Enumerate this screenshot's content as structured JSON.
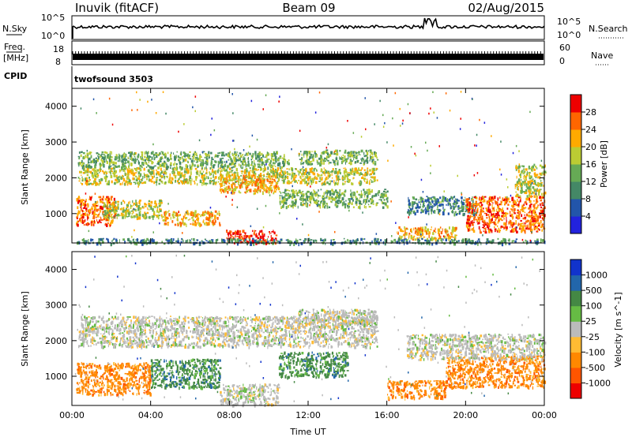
{
  "header": {
    "station": "Inuvik (fitACF)",
    "beam": "Beam 09",
    "date": "02/Aug/2015"
  },
  "strips": {
    "nsky_label": "N.Sky",
    "nsky_ticks": [
      "10^5",
      "10^0"
    ],
    "nsearch_label": "N.Search",
    "nsearch_ticks": [
      "10^5",
      "10^0"
    ],
    "freq_label": "Freq.",
    "freq_unit": "[MHz]",
    "freq_ticks": [
      "18",
      "8"
    ],
    "nave_label": "Nave",
    "nave_ticks": [
      "60",
      "0"
    ],
    "cpid_label": "CPID",
    "cpid_value": "twofsound 3503"
  },
  "colors": {
    "power": [
      "#2222dd",
      "#2255aa",
      "#448866",
      "#66aa55",
      "#bbcc33",
      "#ffaa00",
      "#ff6600",
      "#ee0000"
    ],
    "velocity": [
      "#ee0000",
      "#ff5500",
      "#ff8800",
      "#ffbb33",
      "#bbbbbb",
      "#66bb44",
      "#448844",
      "#2266aa",
      "#1133cc"
    ]
  },
  "chart_data": [
    {
      "type": "heatmap",
      "name": "power",
      "ylabel": "Slant Range [km]",
      "xlabel": "",
      "xlim": [
        "00:00",
        "24:00"
      ],
      "ylim": [
        180,
        4500
      ],
      "x_ticks": [
        "00:00",
        "04:00",
        "08:00",
        "12:00",
        "16:00",
        "20:00",
        "00:00"
      ],
      "y_ticks": [
        1000,
        2000,
        3000,
        4000
      ],
      "colorbar": {
        "label": "Power [dB]",
        "ticks": [
          "4",
          "8",
          "12",
          "16",
          "20",
          "24",
          "28"
        ],
        "range": [
          0,
          32
        ]
      },
      "regions": [
        {
          "t": [
            7.8,
            10.4
          ],
          "r": [
            200,
            550
          ],
          "value": 30
        },
        {
          "t": [
            0.2,
            2.2
          ],
          "r": [
            700,
            1500
          ],
          "value": 26
        },
        {
          "t": [
            1.5,
            4.5
          ],
          "r": [
            900,
            1400
          ],
          "value": 20
        },
        {
          "t": [
            0.3,
            15.5
          ],
          "r": [
            1850,
            2300
          ],
          "value": 19
        },
        {
          "t": [
            0.3,
            11.0
          ],
          "r": [
            2300,
            2750
          ],
          "value": 16
        },
        {
          "t": [
            4.5,
            7.5
          ],
          "r": [
            700,
            1100
          ],
          "value": 22
        },
        {
          "t": [
            7.5,
            10.5
          ],
          "r": [
            1600,
            2100
          ],
          "value": 24
        },
        {
          "t": [
            10.5,
            16.0
          ],
          "r": [
            1200,
            1700
          ],
          "value": 14
        },
        {
          "t": [
            11.5,
            15.5
          ],
          "r": [
            2400,
            2800
          ],
          "value": 16
        },
        {
          "t": [
            17.0,
            20.5
          ],
          "r": [
            1000,
            1500
          ],
          "value": 12
        },
        {
          "t": [
            16.5,
            19.5
          ],
          "r": [
            300,
            650
          ],
          "value": 24
        },
        {
          "t": [
            20.0,
            24.0
          ],
          "r": [
            500,
            1500
          ],
          "value": 26
        },
        {
          "t": [
            22.5,
            24.0
          ],
          "r": [
            1500,
            2400
          ],
          "value": 18
        },
        {
          "t": [
            0.2,
            24.0
          ],
          "r": [
            180,
            320
          ],
          "value": 10
        }
      ]
    },
    {
      "type": "heatmap",
      "name": "velocity",
      "ylabel": "Slant Range [km]",
      "xlabel": "Time UT",
      "xlim": [
        "00:00",
        "24:00"
      ],
      "ylim": [
        180,
        4500
      ],
      "x_ticks": [
        "00:00",
        "04:00",
        "08:00",
        "12:00",
        "16:00",
        "20:00",
        "00:00"
      ],
      "y_ticks": [
        1000,
        2000,
        3000,
        4000
      ],
      "colorbar": {
        "label": "Velocity [m s^-1]",
        "ticks": [
          "1000",
          "500",
          "100",
          "25",
          "-25",
          "-100",
          "-500",
          "-1000"
        ]
      },
      "regions": [
        {
          "t": [
            0.2,
            4.0
          ],
          "r": [
            500,
            1400
          ],
          "value": -300
        },
        {
          "t": [
            4.0,
            7.5
          ],
          "r": [
            700,
            1500
          ],
          "value": 200
        },
        {
          "t": [
            7.5,
            10.5
          ],
          "r": [
            200,
            800
          ],
          "value": 0
        },
        {
          "t": [
            0.3,
            15.5
          ],
          "r": [
            1850,
            2700
          ],
          "value": 0
        },
        {
          "t": [
            11.5,
            15.5
          ],
          "r": [
            2400,
            2900
          ],
          "value": 0
        },
        {
          "t": [
            10.5,
            14.0
          ],
          "r": [
            1000,
            1700
          ],
          "value": 150
        },
        {
          "t": [
            16.0,
            19.0
          ],
          "r": [
            400,
            900
          ],
          "value": -300
        },
        {
          "t": [
            19.0,
            24.0
          ],
          "r": [
            700,
            1600
          ],
          "value": -300
        },
        {
          "t": [
            17.0,
            24.0
          ],
          "r": [
            1500,
            2200
          ],
          "value": 0
        }
      ]
    }
  ]
}
